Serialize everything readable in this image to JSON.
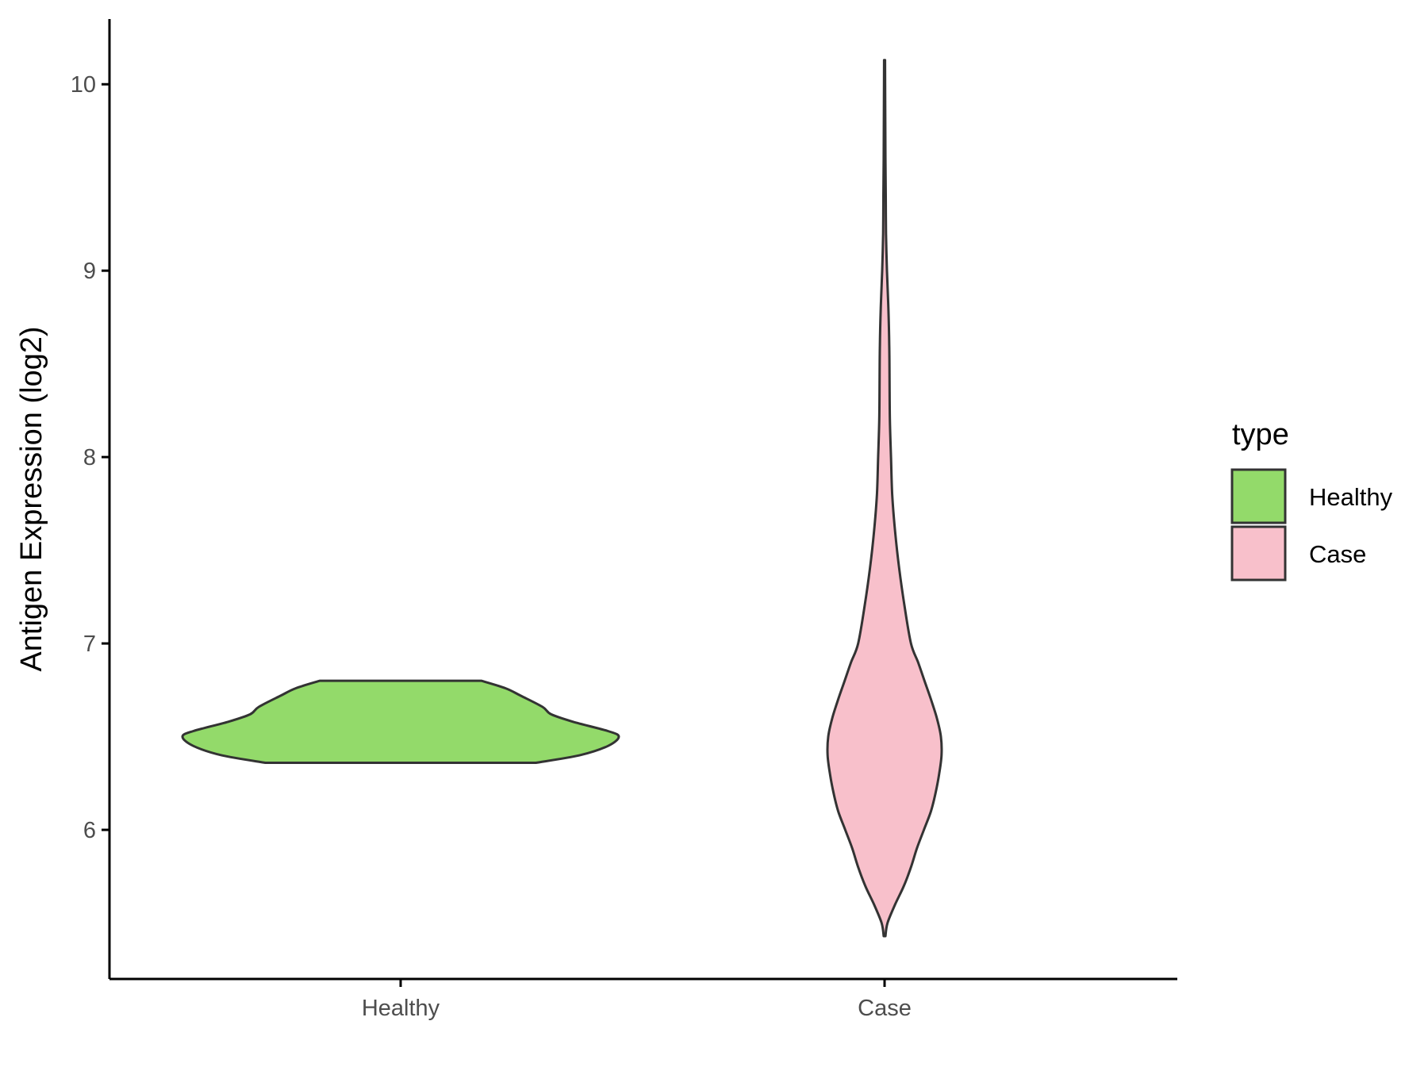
{
  "chart_data": {
    "type": "violin",
    "title": "",
    "xlabel": "",
    "ylabel": "Antigen Expression (log2)",
    "ylim": [
      5.2,
      10.35
    ],
    "yticks": [
      6,
      7,
      8,
      9,
      10
    ],
    "grid": false,
    "legend": {
      "title": "type",
      "position": "right",
      "entries": [
        {
          "label": "Healthy",
          "color": "#93DA6A"
        },
        {
          "label": "Case",
          "color": "#F8C0CB"
        }
      ]
    },
    "categories": [
      "Healthy",
      "Case"
    ],
    "series": [
      {
        "name": "Healthy",
        "color": "#93DA6A",
        "min": 6.36,
        "max": 6.8,
        "density": [
          [
            6.36,
            0.62
          ],
          [
            6.4,
            0.82
          ],
          [
            6.45,
            0.95
          ],
          [
            6.5,
            1.0
          ],
          [
            6.53,
            0.95
          ],
          [
            6.58,
            0.79
          ],
          [
            6.62,
            0.69
          ],
          [
            6.66,
            0.65
          ],
          [
            6.72,
            0.55
          ],
          [
            6.76,
            0.48
          ],
          [
            6.8,
            0.37
          ]
        ]
      },
      {
        "name": "Case",
        "color": "#F8C0CB",
        "min": 5.43,
        "max": 10.13,
        "density": [
          [
            5.43,
            0.015
          ],
          [
            5.5,
            0.05
          ],
          [
            5.6,
            0.18
          ],
          [
            5.7,
            0.33
          ],
          [
            5.8,
            0.45
          ],
          [
            5.9,
            0.55
          ],
          [
            6.0,
            0.67
          ],
          [
            6.1,
            0.79
          ],
          [
            6.2,
            0.87
          ],
          [
            6.3,
            0.93
          ],
          [
            6.4,
            0.97
          ],
          [
            6.5,
            0.96
          ],
          [
            6.6,
            0.89
          ],
          [
            6.7,
            0.79
          ],
          [
            6.8,
            0.68
          ],
          [
            6.9,
            0.57
          ],
          [
            7.0,
            0.45
          ],
          [
            7.2,
            0.34
          ],
          [
            7.4,
            0.25
          ],
          [
            7.6,
            0.18
          ],
          [
            7.8,
            0.13
          ],
          [
            8.0,
            0.11
          ],
          [
            8.2,
            0.09
          ],
          [
            8.4,
            0.085
          ],
          [
            8.6,
            0.08
          ],
          [
            8.8,
            0.065
          ],
          [
            9.0,
            0.04
          ],
          [
            9.2,
            0.025
          ],
          [
            9.4,
            0.02
          ],
          [
            9.6,
            0.015
          ],
          [
            9.8,
            0.012
          ],
          [
            10.0,
            0.01
          ],
          [
            10.13,
            0.008
          ]
        ]
      }
    ]
  }
}
